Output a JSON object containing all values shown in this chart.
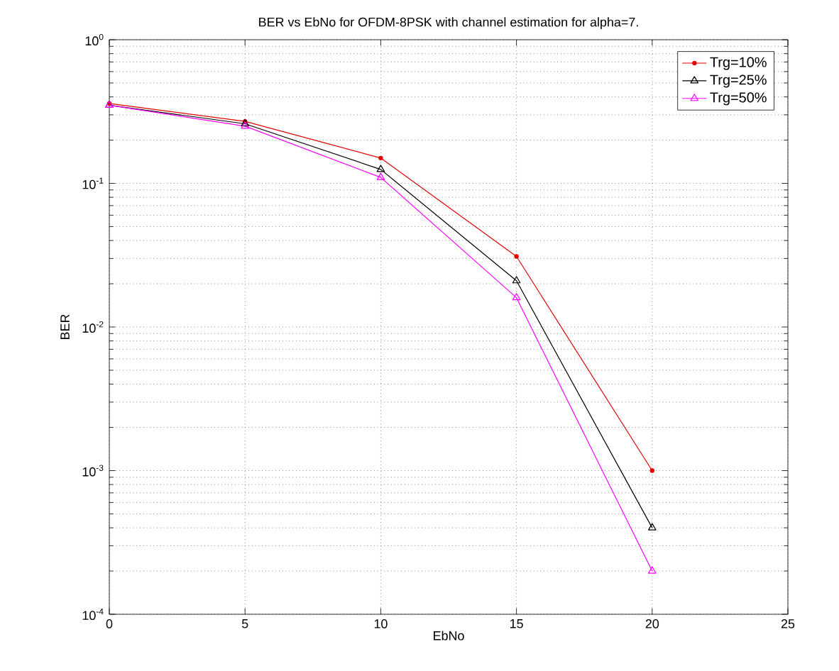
{
  "chart_data": {
    "type": "line",
    "title": "BER vs EbNo for OFDM-8PSK with channel estimation for alpha=7.",
    "xlabel": "EbNo",
    "ylabel": "BER",
    "log": "y",
    "grid": true,
    "legend": "top right",
    "line_style": "solid",
    "x": [
      0,
      5,
      10,
      15,
      20
    ],
    "series": [
      {
        "name": "Trg=10%",
        "color": "#e00000",
        "marker": "circle",
        "values": [
          0.36,
          0.27,
          0.15,
          0.031,
          0.001
        ]
      },
      {
        "name": "Trg=25%",
        "color": "#000000",
        "marker": "triangle",
        "values": [
          0.35,
          0.26,
          0.125,
          0.021,
          0.0004
        ]
      },
      {
        "name": "Trg=50%",
        "color": "#ff00ff",
        "marker": "triangle",
        "values": [
          0.35,
          0.25,
          0.11,
          0.016,
          0.0002
        ]
      }
    ],
    "xlim": [
      0,
      25
    ],
    "xticks": [
      0,
      5,
      10,
      15,
      20,
      25
    ],
    "ylim": [
      0.0001,
      1
    ],
    "yticks": [
      {
        "value": 0.0001,
        "label": "10$^{-4}$"
      },
      {
        "value": 0.001,
        "label": "10$^{-3}$"
      },
      {
        "value": 0.01,
        "label": "10$^{-2}$"
      },
      {
        "value": 0.1,
        "label": "10$^{-1}$"
      },
      {
        "value": 1,
        "label": "10$^{0}$"
      }
    ]
  }
}
